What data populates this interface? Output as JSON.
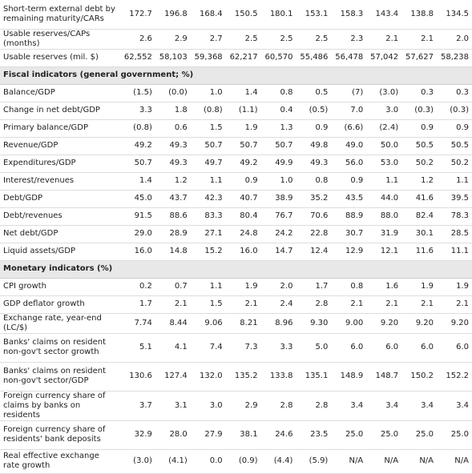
{
  "rows": [
    {
      "label": "Short-term external debt by remaining maturity/CARs",
      "values": [
        "172.7",
        "196.8",
        "168.4",
        "150.5",
        "180.1",
        "153.1",
        "158.3",
        "143.4",
        "138.8",
        "134.5"
      ]
    },
    {
      "label": "Usable reserves/CAPs (months)",
      "values": [
        "2.6",
        "2.9",
        "2.7",
        "2.5",
        "2.5",
        "2.5",
        "2.3",
        "2.1",
        "2.1",
        "2.0"
      ]
    },
    {
      "label": "Usable reserves (mil. $)",
      "values": [
        "62,552",
        "58,103",
        "59,368",
        "62,217",
        "60,570",
        "55,486",
        "56,478",
        "57,042",
        "57,627",
        "58,238"
      ]
    },
    {
      "section": "Fiscal indicators (general government; %)"
    },
    {
      "label": "Balance/GDP",
      "values": [
        "(1.5)",
        "(0.0)",
        "1.0",
        "1.4",
        "0.8",
        "0.5",
        "(7)",
        "(3.0)",
        "0.3",
        "0.3"
      ]
    },
    {
      "label": "Change in net debt/GDP",
      "values": [
        "3.3",
        "1.8",
        "(0.8)",
        "(1.1)",
        "0.4",
        "(0.5)",
        "7.0",
        "3.0",
        "(0.3)",
        "(0.3)"
      ]
    },
    {
      "label": "Primary balance/GDP",
      "values": [
        "(0.8)",
        "0.6",
        "1.5",
        "1.9",
        "1.3",
        "0.9",
        "(6.6)",
        "(2.4)",
        "0.9",
        "0.9"
      ]
    },
    {
      "label": "Revenue/GDP",
      "values": [
        "49.2",
        "49.3",
        "50.7",
        "50.7",
        "50.7",
        "49.8",
        "49.0",
        "50.0",
        "50.5",
        "50.5"
      ]
    },
    {
      "label": "Expenditures/GDP",
      "values": [
        "50.7",
        "49.3",
        "49.7",
        "49.2",
        "49.9",
        "49.3",
        "56.0",
        "53.0",
        "50.2",
        "50.2"
      ]
    },
    {
      "label": "Interest/revenues",
      "values": [
        "1.4",
        "1.2",
        "1.1",
        "0.9",
        "1.0",
        "0.8",
        "0.9",
        "1.1",
        "1.2",
        "1.1"
      ]
    },
    {
      "label": "Debt/GDP",
      "values": [
        "45.0",
        "43.7",
        "42.3",
        "40.7",
        "38.9",
        "35.2",
        "43.5",
        "44.0",
        "41.6",
        "39.5"
      ]
    },
    {
      "label": "Debt/revenues",
      "values": [
        "91.5",
        "88.6",
        "83.3",
        "80.4",
        "76.7",
        "70.6",
        "88.9",
        "88.0",
        "82.4",
        "78.3"
      ]
    },
    {
      "label": "Net debt/GDP",
      "values": [
        "29.0",
        "28.9",
        "27.1",
        "24.8",
        "24.2",
        "22.8",
        "30.7",
        "31.9",
        "30.1",
        "28.5"
      ]
    },
    {
      "label": "Liquid assets/GDP",
      "values": [
        "16.0",
        "14.8",
        "15.2",
        "16.0",
        "14.7",
        "12.4",
        "12.9",
        "12.1",
        "11.6",
        "11.1"
      ]
    },
    {
      "section": "Monetary indicators (%)"
    },
    {
      "label": "CPI growth",
      "values": [
        "0.2",
        "0.7",
        "1.1",
        "1.9",
        "2.0",
        "1.7",
        "0.8",
        "1.6",
        "1.9",
        "1.9"
      ]
    },
    {
      "label": "GDP deflator growth",
      "values": [
        "1.7",
        "2.1",
        "1.5",
        "2.1",
        "2.4",
        "2.8",
        "2.1",
        "2.1",
        "2.1",
        "2.1"
      ]
    },
    {
      "label": "Exchange rate, year-end (LC/$)",
      "values": [
        "7.74",
        "8.44",
        "9.06",
        "8.21",
        "8.96",
        "9.30",
        "9.00",
        "9.20",
        "9.20",
        "9.20"
      ]
    },
    {
      "label": "Banks' claims on resident non-gov't sector growth",
      "values": [
        "5.1",
        "4.1",
        "7.4",
        "7.3",
        "3.3",
        "5.0",
        "6.0",
        "6.0",
        "6.0",
        "6.0"
      ]
    },
    {
      "label": "Banks' claims on resident non-gov't sector/GDP",
      "values": [
        "130.6",
        "127.4",
        "132.0",
        "135.2",
        "133.8",
        "135.1",
        "148.9",
        "148.7",
        "150.2",
        "152.2"
      ]
    },
    {
      "label": "Foreign currency share of claims by banks on residents",
      "values": [
        "3.7",
        "3.1",
        "3.0",
        "2.9",
        "2.8",
        "2.8",
        "3.4",
        "3.4",
        "3.4",
        "3.4"
      ]
    },
    {
      "label": "Foreign currency share of residents' bank deposits",
      "values": [
        "32.9",
        "28.0",
        "27.9",
        "38.1",
        "24.6",
        "23.5",
        "25.0",
        "25.0",
        "25.0",
        "25.0"
      ]
    },
    {
      "label": "Real effective exchange rate growth",
      "values": [
        "(3.0)",
        "(4.1)",
        "0.0",
        "(0.9)",
        "(4.4)",
        "(5.9)",
        "N/A",
        "N/A",
        "N/A",
        "N/A"
      ]
    }
  ]
}
